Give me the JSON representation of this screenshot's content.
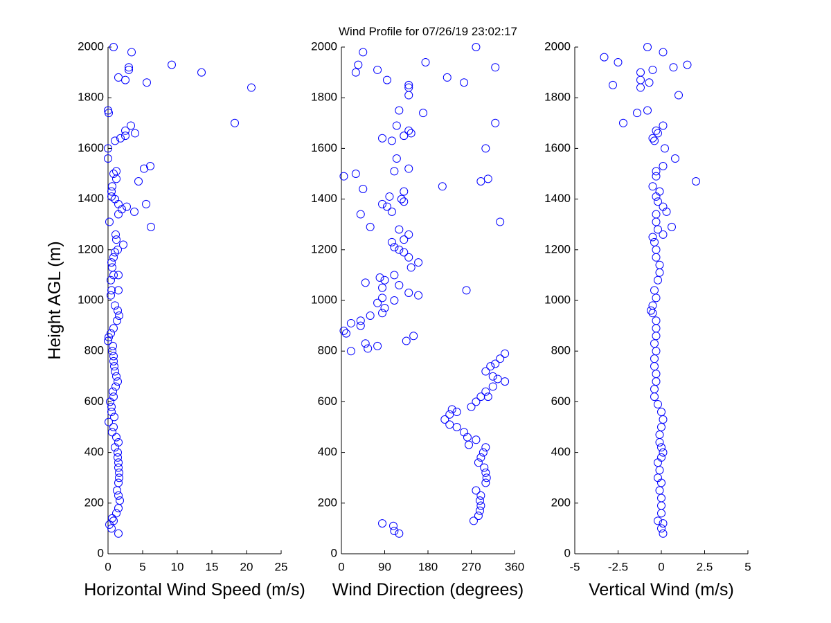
{
  "chart_data": [
    {
      "type": "scatter",
      "xlabel": "Horizontal Wind Speed (m/s)",
      "ylabel": "Height AGL (m)",
      "color": "#0000ff",
      "xlim": [
        0,
        25
      ],
      "xticks": [
        0,
        5,
        10,
        15,
        20,
        25
      ],
      "ylim": [
        0,
        2000
      ],
      "yticks": [
        0,
        200,
        400,
        600,
        800,
        1000,
        1200,
        1400,
        1600,
        1800,
        2000
      ],
      "x": [
        1.5,
        0.5,
        0.2,
        0.8,
        0.6,
        1.2,
        1.5,
        1.7,
        1.5,
        1.3,
        1.5,
        1.6,
        1.6,
        1.5,
        1.5,
        1.4,
        1.4,
        1.0,
        1.5,
        1.2,
        0.6,
        0.8,
        0.1,
        0.9,
        0.5,
        0.5,
        0.3,
        0.8,
        0.7,
        1.1,
        1.4,
        1.2,
        1.0,
        0.9,
        0.8,
        0.8,
        0.6,
        0.7,
        0.0,
        0.1,
        0.4,
        0.8,
        1.3,
        1.6,
        1.4,
        1.0,
        0.4,
        0.5,
        1.5,
        0.4,
        0.8,
        1.5,
        0.6,
        0.5,
        0.8,
        1.0,
        1.4,
        2.2,
        1.2,
        1.1,
        0.2,
        1.5,
        2.0,
        2.7,
        1.5,
        3.8,
        5.5,
        1.0,
        0.5,
        0.5,
        0.6,
        4.4,
        1.2,
        0.8,
        1.2,
        5.2,
        6.1,
        0.0,
        0.0,
        1.0,
        1.8,
        2.5,
        2.5,
        3.3,
        3.9,
        18.3,
        0.1,
        0.0,
        20.7,
        5.6,
        1.5,
        2.5,
        13.5,
        3.0,
        3.0,
        9.2,
        3.4,
        0.8,
        6.2
      ],
      "y": [
        80,
        100,
        115,
        130,
        140,
        160,
        180,
        210,
        230,
        250,
        280,
        300,
        320,
        340,
        360,
        380,
        400,
        420,
        440,
        460,
        480,
        500,
        520,
        540,
        560,
        580,
        600,
        620,
        640,
        660,
        680,
        700,
        720,
        740,
        760,
        780,
        800,
        820,
        840,
        855,
        870,
        890,
        920,
        940,
        960,
        980,
        1020,
        1040,
        1040,
        1080,
        1100,
        1100,
        1130,
        1150,
        1170,
        1190,
        1200,
        1220,
        1240,
        1260,
        1310,
        1340,
        1360,
        1370,
        1380,
        1350,
        1380,
        1400,
        1410,
        1430,
        1450,
        1470,
        1480,
        1500,
        1510,
        1520,
        1530,
        1560,
        1600,
        1630,
        1640,
        1650,
        1670,
        1690,
        1660,
        1700,
        1740,
        1750,
        1840,
        1860,
        1880,
        1870,
        1900,
        1910,
        1920,
        1930,
        1980,
        2000,
        1290
      ]
    },
    {
      "type": "scatter",
      "title": "Wind Profile for  07/26/19 23:02:17",
      "xlabel": "Wind Direction (degrees)",
      "color": "#0000ff",
      "xlim": [
        0,
        360
      ],
      "xticks": [
        0,
        90,
        180,
        270,
        360
      ],
      "ylim": [
        0,
        2000
      ],
      "yticks": [
        0,
        200,
        400,
        600,
        800,
        1000,
        1200,
        1400,
        1600,
        1800,
        2000
      ],
      "x": [
        120,
        110,
        108,
        85,
        275,
        285,
        288,
        290,
        288,
        290,
        280,
        300,
        302,
        300,
        297,
        285,
        290,
        295,
        300,
        280,
        265,
        262,
        255,
        240,
        225,
        215,
        225,
        230,
        240,
        270,
        280,
        290,
        305,
        300,
        315,
        325,
        315,
        340,
        300,
        310,
        320,
        330,
        340,
        20,
        55,
        75,
        50,
        135,
        150,
        10,
        5,
        20,
        40,
        40,
        60,
        85,
        90,
        75,
        110,
        85,
        160,
        260,
        140,
        85,
        120,
        50,
        90,
        80,
        110,
        160,
        145,
        140,
        130,
        120,
        110,
        105,
        130,
        140,
        120,
        60,
        330,
        40,
        105,
        95,
        130,
        85,
        125,
        100,
        130,
        210,
        45,
        5,
        30,
        290,
        305,
        110,
        140,
        115,
        300,
        105,
        85,
        130,
        145,
        140,
        115,
        320,
        170,
        120,
        140,
        140,
        140,
        255,
        95,
        220,
        30,
        75,
        320,
        35,
        175,
        45,
        280
      ],
      "y": [
        80,
        90,
        110,
        120,
        130,
        150,
        170,
        190,
        210,
        230,
        250,
        280,
        300,
        320,
        340,
        360,
        380,
        400,
        420,
        450,
        430,
        460,
        480,
        500,
        510,
        530,
        550,
        570,
        560,
        580,
        600,
        620,
        620,
        640,
        660,
        690,
        700,
        680,
        720,
        740,
        750,
        770,
        790,
        800,
        810,
        820,
        830,
        840,
        860,
        870,
        880,
        910,
        900,
        920,
        940,
        950,
        970,
        990,
        1000,
        1010,
        1020,
        1040,
        1030,
        1050,
        1060,
        1070,
        1080,
        1090,
        1100,
        1150,
        1130,
        1170,
        1190,
        1200,
        1210,
        1230,
        1240,
        1260,
        1280,
        1290,
        1310,
        1340,
        1350,
        1370,
        1390,
        1380,
        1400,
        1410,
        1430,
        1450,
        1440,
        1490,
        1500,
        1470,
        1480,
        1510,
        1520,
        1560,
        1600,
        1630,
        1640,
        1650,
        1660,
        1670,
        1690,
        1700,
        1740,
        1750,
        1810,
        1840,
        1850,
        1860,
        1870,
        1880,
        1900,
        1910,
        1920,
        1930,
        1940,
        1980,
        2000
      ]
    },
    {
      "type": "scatter",
      "xlabel": "Vertical Wind (m/s)",
      "color": "#0000ff",
      "xlim": [
        -5,
        5
      ],
      "xticks": [
        -5,
        -2.5,
        0,
        2.5,
        5
      ],
      "ylim": [
        0,
        2000
      ],
      "yticks": [
        0,
        200,
        400,
        600,
        800,
        1000,
        1200,
        1400,
        1600,
        1800,
        2000
      ],
      "x": [
        0.1,
        0,
        0.1,
        -0.2,
        0,
        0,
        0,
        -0.1,
        0,
        -0.2,
        -0.1,
        -0.2,
        0,
        0.1,
        0,
        -0.1,
        -0.1,
        0,
        0.1,
        0,
        -0.2,
        -0.4,
        -0.4,
        -0.3,
        -0.3,
        -0.4,
        -0.4,
        -0.3,
        -0.4,
        -0.3,
        -0.3,
        -0.3,
        -0.5,
        -0.6,
        -0.5,
        -0.3,
        -0.4,
        -0.2,
        -0.1,
        -0.1,
        -0.3,
        -0.3,
        -0.4,
        -0.5,
        0.1,
        -0.2,
        0.6,
        -0.3,
        -0.3,
        0.3,
        0.1,
        -0.2,
        -0.3,
        -0.1,
        -0.5,
        2,
        -0.3,
        -0.3,
        0.1,
        0.8,
        0.2,
        -0.4,
        -0.5,
        -0.2,
        0.1,
        -0.3,
        -1.4,
        -0.8,
        -2.2,
        1,
        -1.2,
        -2.8,
        -1.2,
        -0.7,
        -1.2,
        -0.5,
        0.7,
        1.5,
        -2.5,
        -3.3,
        0.1,
        -0.8
      ],
      "y": [
        80,
        100,
        120,
        130,
        160,
        190,
        220,
        250,
        280,
        300,
        330,
        360,
        380,
        400,
        420,
        440,
        470,
        500,
        530,
        560,
        590,
        620,
        650,
        680,
        710,
        740,
        770,
        800,
        830,
        860,
        890,
        920,
        950,
        960,
        980,
        1010,
        1040,
        1080,
        1110,
        1140,
        1170,
        1200,
        1230,
        1250,
        1260,
        1280,
        1290,
        1310,
        1340,
        1350,
        1370,
        1390,
        1410,
        1430,
        1450,
        1470,
        1490,
        1510,
        1530,
        1560,
        1600,
        1630,
        1640,
        1660,
        1690,
        1670,
        1740,
        1750,
        1700,
        1810,
        1840,
        1850,
        1870,
        1860,
        1900,
        1910,
        1920,
        1930,
        1940,
        1960,
        1980,
        2000
      ]
    }
  ]
}
